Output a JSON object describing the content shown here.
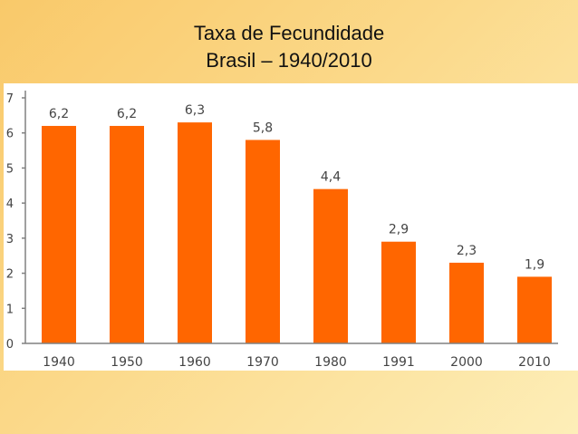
{
  "slide": {
    "title": "Taxa de Fecundidade",
    "subtitle": "Brasil – 1940/2010"
  },
  "colors": {
    "bar": "#ff6600",
    "axis": "#808080",
    "text": "#444444"
  },
  "chart_data": {
    "type": "bar",
    "title": "",
    "xlabel": "",
    "ylabel": "",
    "categories": [
      "1940",
      "1950",
      "1960",
      "1970",
      "1980",
      "1991",
      "2000",
      "2010"
    ],
    "values": [
      6.2,
      6.2,
      6.3,
      5.8,
      4.4,
      2.9,
      2.3,
      1.9
    ],
    "value_labels": [
      "6,2",
      "6,2",
      "6,3",
      "5,8",
      "4,4",
      "2,9",
      "2,3",
      "1,9"
    ],
    "yticks": [
      "0",
      "1",
      "2",
      "3",
      "4",
      "5",
      "6",
      "7"
    ],
    "ylim": [
      0,
      7
    ],
    "grid": false,
    "legend": false
  }
}
